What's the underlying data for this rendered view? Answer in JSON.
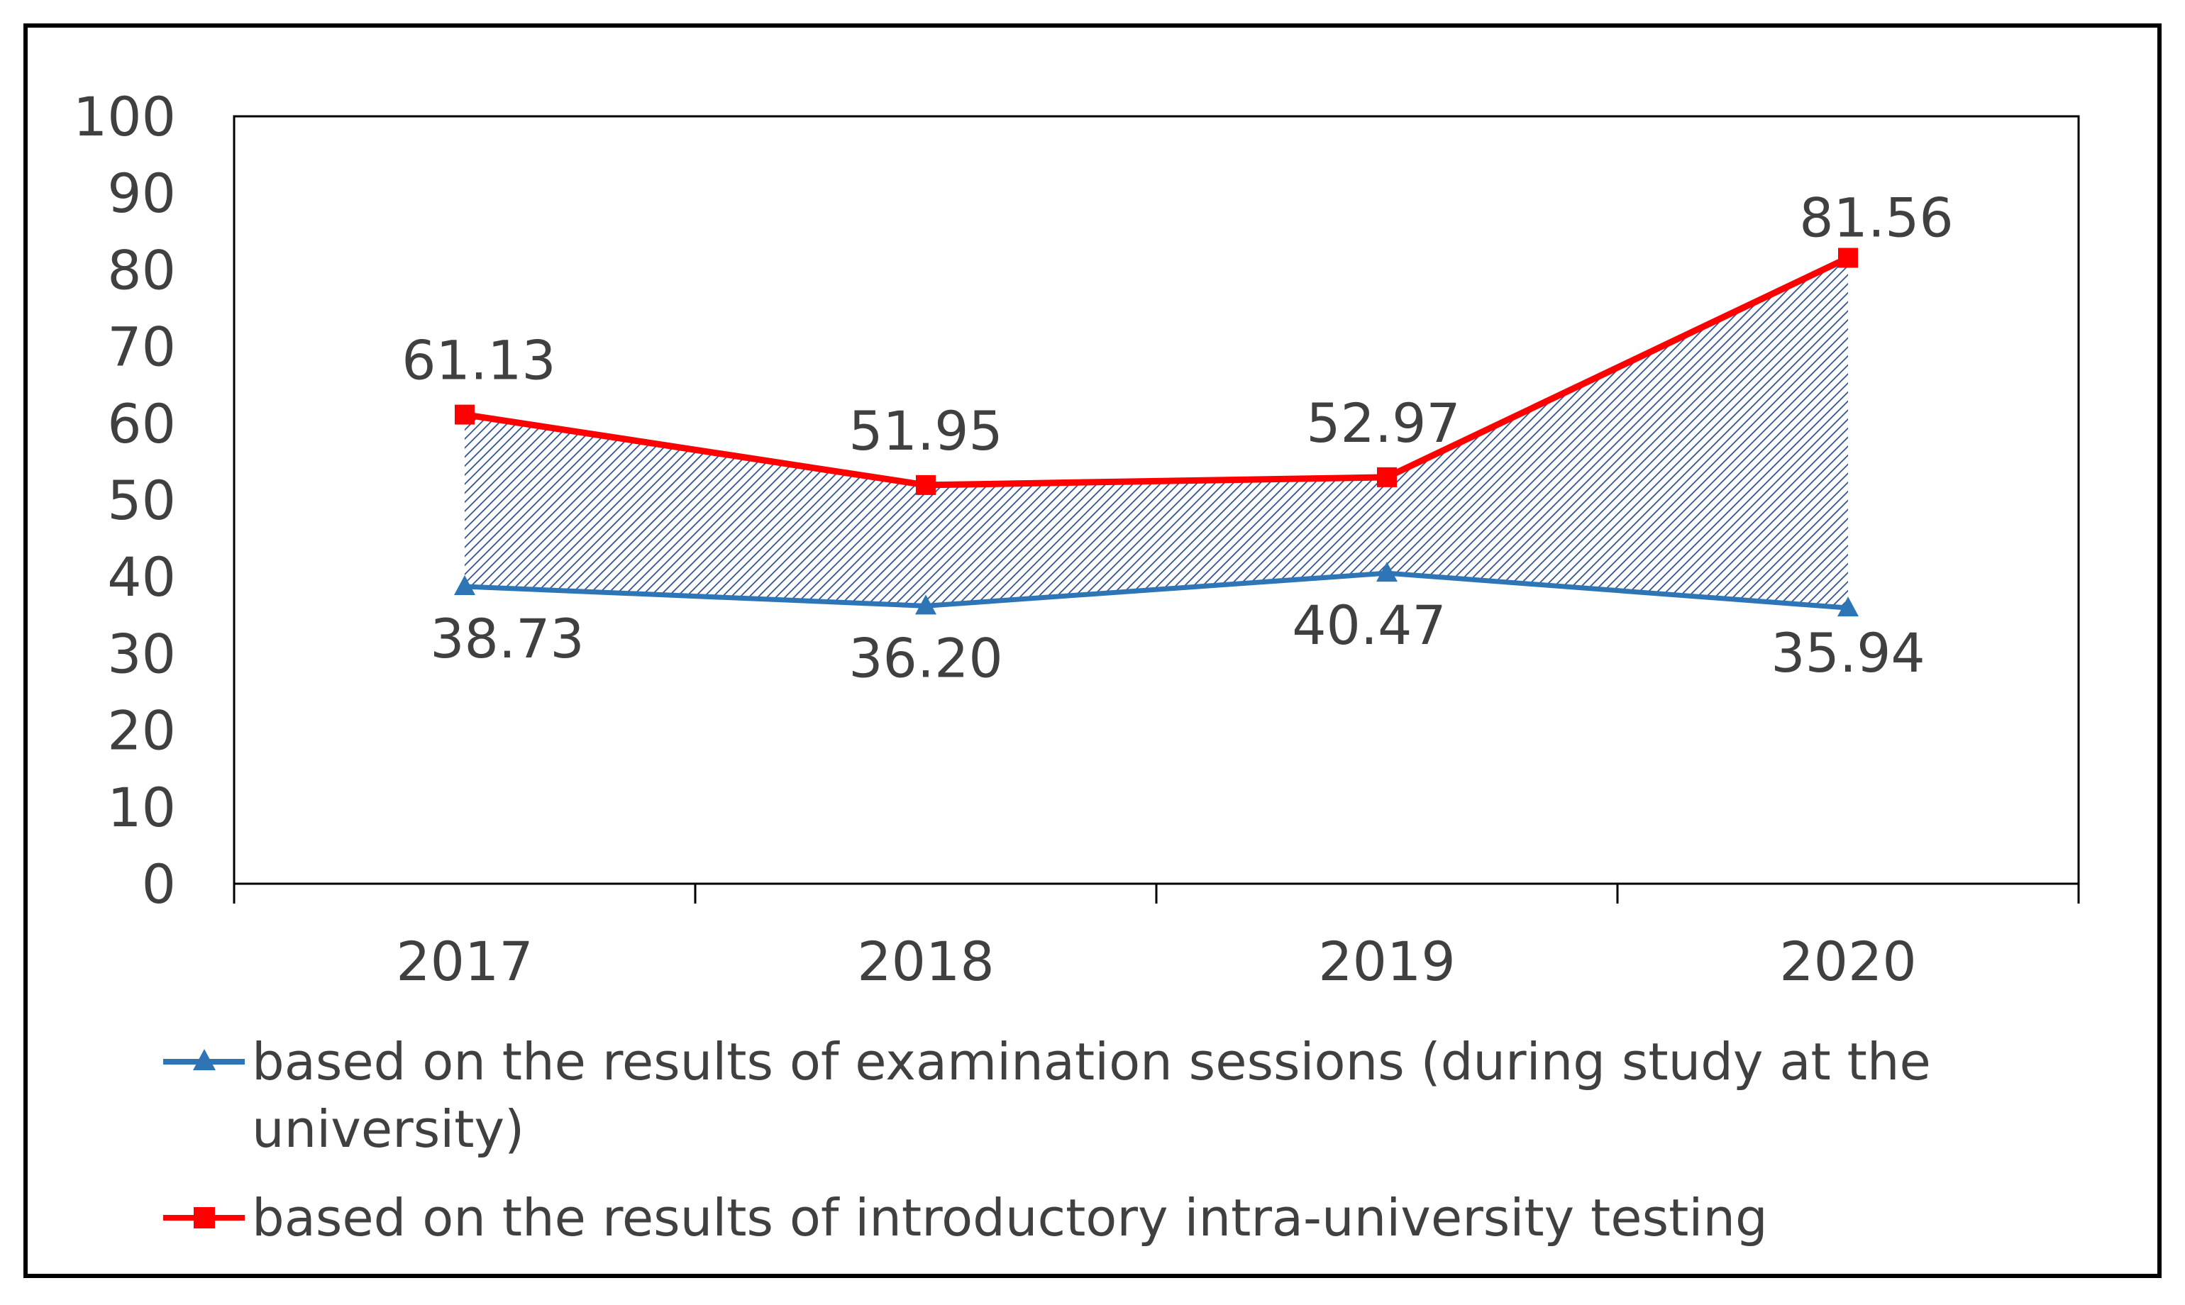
{
  "chart_data": {
    "type": "line",
    "title": "",
    "xlabel": "",
    "ylabel": "",
    "categories": [
      "2017",
      "2018",
      "2019",
      "2020"
    ],
    "ylim": [
      0,
      100
    ],
    "yticks": [
      "0",
      "10",
      "20",
      "30",
      "40",
      "50",
      "60",
      "70",
      "80",
      "90",
      "100"
    ],
    "grid": false,
    "legend_position": "bottom",
    "shaded_region_between_series": true,
    "series": [
      {
        "name": "based on the results of examination sessions (during study at the university)",
        "legend_lines": [
          "based on the results of examination sessions (during study at the",
          "university)"
        ],
        "color": "#2e75b6",
        "marker": "triangle",
        "values": [
          38.73,
          36.2,
          40.47,
          35.94
        ],
        "labels": [
          "38.73",
          "36.20",
          "40.47",
          "35.94"
        ]
      },
      {
        "name": "based on the results of introductory intra-university testing",
        "legend_lines": [
          "based on the results of introductory intra-university testing"
        ],
        "color": "#ff0000",
        "marker": "square",
        "values": [
          61.13,
          51.95,
          52.97,
          81.56
        ],
        "labels": [
          "61.13",
          "51.95",
          "52.97",
          "81.56"
        ]
      }
    ]
  }
}
